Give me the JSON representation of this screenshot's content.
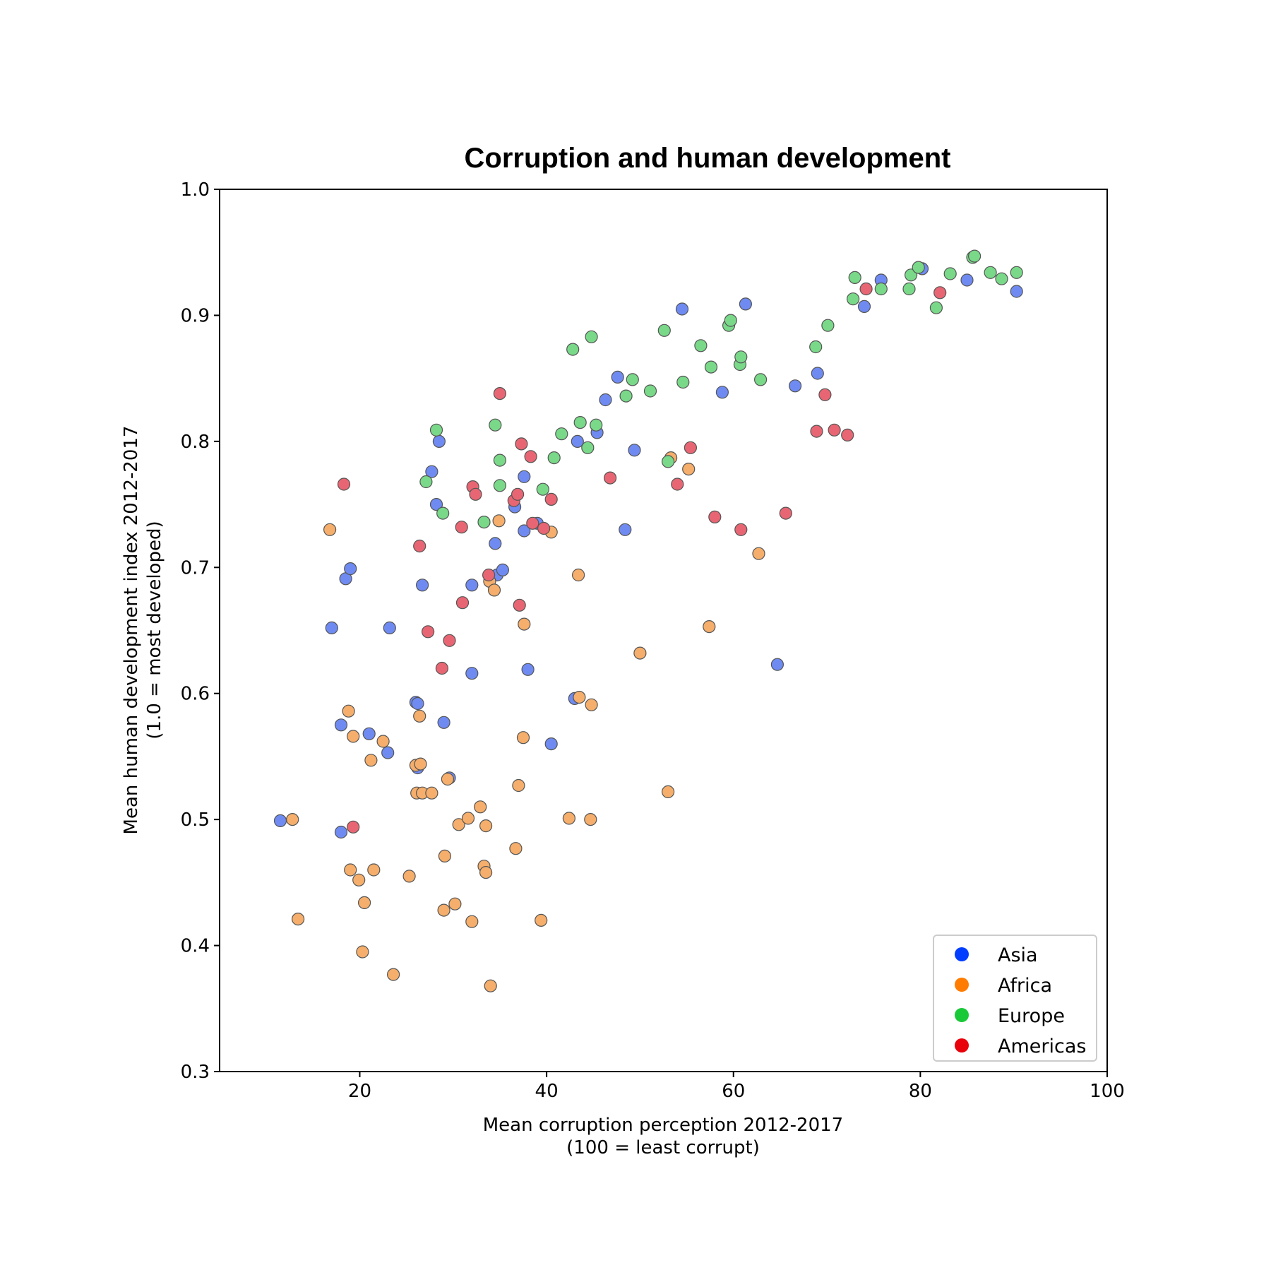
{
  "chart_data": {
    "type": "scatter",
    "title": "Corruption and human development",
    "xlabel_lines": [
      "Mean corruption perception 2012-2017",
      "(100 = least corrupt)"
    ],
    "ylabel_lines": [
      "Mean human development index 2012-2017",
      "(1.0 = most developed)"
    ],
    "xlim": [
      5,
      100
    ],
    "ylim": [
      0.3,
      1.0
    ],
    "x_ticks": [
      20,
      40,
      60,
      80,
      100
    ],
    "y_ticks": [
      0.3,
      0.4,
      0.5,
      0.6,
      0.7,
      0.8,
      0.9,
      1.0
    ],
    "x_tick_labels": [
      "20",
      "40",
      "60",
      "80",
      "100"
    ],
    "y_tick_labels": [
      "0.3",
      "0.4",
      "0.5",
      "0.6",
      "0.7",
      "0.8",
      "0.9",
      "1.0"
    ],
    "grid": false,
    "legend_position": "bottom-right",
    "series": [
      {
        "name": "Asia",
        "legend_color": "#023eff",
        "point_color": "#6f8bf2",
        "points": [
          [
            11.5,
            0.499
          ],
          [
            17.0,
            0.652
          ],
          [
            18.0,
            0.575
          ],
          [
            18.0,
            0.49
          ],
          [
            18.5,
            0.691
          ],
          [
            19.0,
            0.699
          ],
          [
            21.0,
            0.568
          ],
          [
            23.0,
            0.553
          ],
          [
            23.2,
            0.652
          ],
          [
            26.0,
            0.593
          ],
          [
            26.2,
            0.592
          ],
          [
            26.2,
            0.541
          ],
          [
            26.7,
            0.686
          ],
          [
            27.7,
            0.776
          ],
          [
            28.2,
            0.75
          ],
          [
            28.5,
            0.8
          ],
          [
            29.0,
            0.577
          ],
          [
            29.6,
            0.533
          ],
          [
            32.0,
            0.686
          ],
          [
            32.0,
            0.616
          ],
          [
            34.5,
            0.719
          ],
          [
            34.7,
            0.694
          ],
          [
            35.3,
            0.698
          ],
          [
            36.6,
            0.748
          ],
          [
            37.6,
            0.772
          ],
          [
            37.6,
            0.729
          ],
          [
            38.0,
            0.619
          ],
          [
            39.0,
            0.735
          ],
          [
            40.5,
            0.56
          ],
          [
            43.0,
            0.596
          ],
          [
            43.3,
            0.8
          ],
          [
            45.4,
            0.807
          ],
          [
            46.3,
            0.833
          ],
          [
            47.6,
            0.851
          ],
          [
            48.4,
            0.73
          ],
          [
            49.4,
            0.793
          ],
          [
            54.5,
            0.905
          ],
          [
            58.8,
            0.839
          ],
          [
            61.3,
            0.909
          ],
          [
            64.7,
            0.623
          ],
          [
            66.6,
            0.844
          ],
          [
            69.0,
            0.854
          ],
          [
            74.0,
            0.907
          ],
          [
            75.8,
            0.928
          ],
          [
            80.2,
            0.937
          ],
          [
            85.0,
            0.928
          ],
          [
            90.3,
            0.919
          ]
        ]
      },
      {
        "name": "Africa",
        "legend_color": "#ff7c00",
        "point_color": "#f5ae6b",
        "points": [
          [
            12.8,
            0.5
          ],
          [
            13.4,
            0.421
          ],
          [
            16.8,
            0.73
          ],
          [
            18.8,
            0.586
          ],
          [
            19.0,
            0.46
          ],
          [
            19.3,
            0.566
          ],
          [
            19.9,
            0.452
          ],
          [
            20.3,
            0.395
          ],
          [
            20.5,
            0.434
          ],
          [
            21.2,
            0.547
          ],
          [
            21.5,
            0.46
          ],
          [
            22.5,
            0.562
          ],
          [
            23.6,
            0.377
          ],
          [
            25.3,
            0.455
          ],
          [
            26.0,
            0.543
          ],
          [
            26.1,
            0.521
          ],
          [
            26.4,
            0.582
          ],
          [
            26.5,
            0.544
          ],
          [
            26.7,
            0.521
          ],
          [
            27.7,
            0.521
          ],
          [
            29.0,
            0.428
          ],
          [
            29.1,
            0.471
          ],
          [
            29.4,
            0.532
          ],
          [
            30.2,
            0.433
          ],
          [
            30.6,
            0.496
          ],
          [
            31.6,
            0.501
          ],
          [
            32.0,
            0.419
          ],
          [
            32.9,
            0.51
          ],
          [
            33.3,
            0.463
          ],
          [
            33.5,
            0.458
          ],
          [
            33.5,
            0.495
          ],
          [
            33.9,
            0.689
          ],
          [
            34.0,
            0.368
          ],
          [
            34.4,
            0.682
          ],
          [
            34.9,
            0.737
          ],
          [
            36.7,
            0.477
          ],
          [
            37.0,
            0.527
          ],
          [
            37.5,
            0.565
          ],
          [
            37.6,
            0.655
          ],
          [
            39.4,
            0.42
          ],
          [
            40.5,
            0.728
          ],
          [
            42.4,
            0.501
          ],
          [
            43.4,
            0.694
          ],
          [
            43.5,
            0.597
          ],
          [
            44.7,
            0.5
          ],
          [
            44.8,
            0.591
          ],
          [
            50.0,
            0.632
          ],
          [
            53.0,
            0.522
          ],
          [
            53.3,
            0.787
          ],
          [
            55.2,
            0.778
          ],
          [
            57.4,
            0.653
          ],
          [
            62.7,
            0.711
          ]
        ]
      },
      {
        "name": "Europe",
        "legend_color": "#1ac938",
        "point_color": "#79d989",
        "points": [
          [
            27.1,
            0.768
          ],
          [
            28.2,
            0.809
          ],
          [
            28.9,
            0.743
          ],
          [
            33.3,
            0.736
          ],
          [
            34.5,
            0.813
          ],
          [
            35.0,
            0.785
          ],
          [
            35.0,
            0.765
          ],
          [
            39.6,
            0.762
          ],
          [
            40.8,
            0.787
          ],
          [
            41.6,
            0.806
          ],
          [
            42.8,
            0.873
          ],
          [
            43.6,
            0.815
          ],
          [
            44.4,
            0.795
          ],
          [
            44.8,
            0.883
          ],
          [
            45.3,
            0.813
          ],
          [
            48.5,
            0.836
          ],
          [
            49.2,
            0.849
          ],
          [
            51.1,
            0.84
          ],
          [
            52.6,
            0.888
          ],
          [
            53.0,
            0.784
          ],
          [
            54.6,
            0.847
          ],
          [
            56.5,
            0.876
          ],
          [
            57.6,
            0.859
          ],
          [
            59.5,
            0.892
          ],
          [
            59.7,
            0.896
          ],
          [
            60.7,
            0.861
          ],
          [
            60.8,
            0.867
          ],
          [
            62.9,
            0.849
          ],
          [
            68.8,
            0.875
          ],
          [
            70.1,
            0.892
          ],
          [
            72.8,
            0.913
          ],
          [
            73.0,
            0.93
          ],
          [
            75.8,
            0.921
          ],
          [
            78.8,
            0.921
          ],
          [
            79.0,
            0.932
          ],
          [
            79.8,
            0.938
          ],
          [
            81.7,
            0.906
          ],
          [
            83.2,
            0.933
          ],
          [
            85.6,
            0.946
          ],
          [
            85.8,
            0.947
          ],
          [
            87.5,
            0.934
          ],
          [
            88.7,
            0.929
          ],
          [
            90.3,
            0.934
          ]
        ]
      },
      {
        "name": "Americas",
        "legend_color": "#e8000b",
        "point_color": "#e86673",
        "points": [
          [
            18.3,
            0.766
          ],
          [
            19.3,
            0.494
          ],
          [
            26.4,
            0.717
          ],
          [
            27.3,
            0.649
          ],
          [
            28.8,
            0.62
          ],
          [
            29.6,
            0.642
          ],
          [
            30.9,
            0.732
          ],
          [
            31.0,
            0.672
          ],
          [
            32.1,
            0.764
          ],
          [
            32.4,
            0.758
          ],
          [
            33.8,
            0.694
          ],
          [
            35.0,
            0.838
          ],
          [
            36.5,
            0.753
          ],
          [
            36.9,
            0.758
          ],
          [
            37.1,
            0.67
          ],
          [
            37.3,
            0.798
          ],
          [
            38.3,
            0.788
          ],
          [
            38.5,
            0.735
          ],
          [
            39.7,
            0.731
          ],
          [
            40.5,
            0.754
          ],
          [
            46.8,
            0.771
          ],
          [
            54.0,
            0.766
          ],
          [
            55.4,
            0.795
          ],
          [
            58.0,
            0.74
          ],
          [
            60.8,
            0.73
          ],
          [
            65.6,
            0.743
          ],
          [
            68.9,
            0.808
          ],
          [
            69.8,
            0.837
          ],
          [
            70.8,
            0.809
          ],
          [
            72.2,
            0.805
          ],
          [
            74.2,
            0.921
          ],
          [
            82.1,
            0.918
          ]
        ]
      }
    ]
  }
}
